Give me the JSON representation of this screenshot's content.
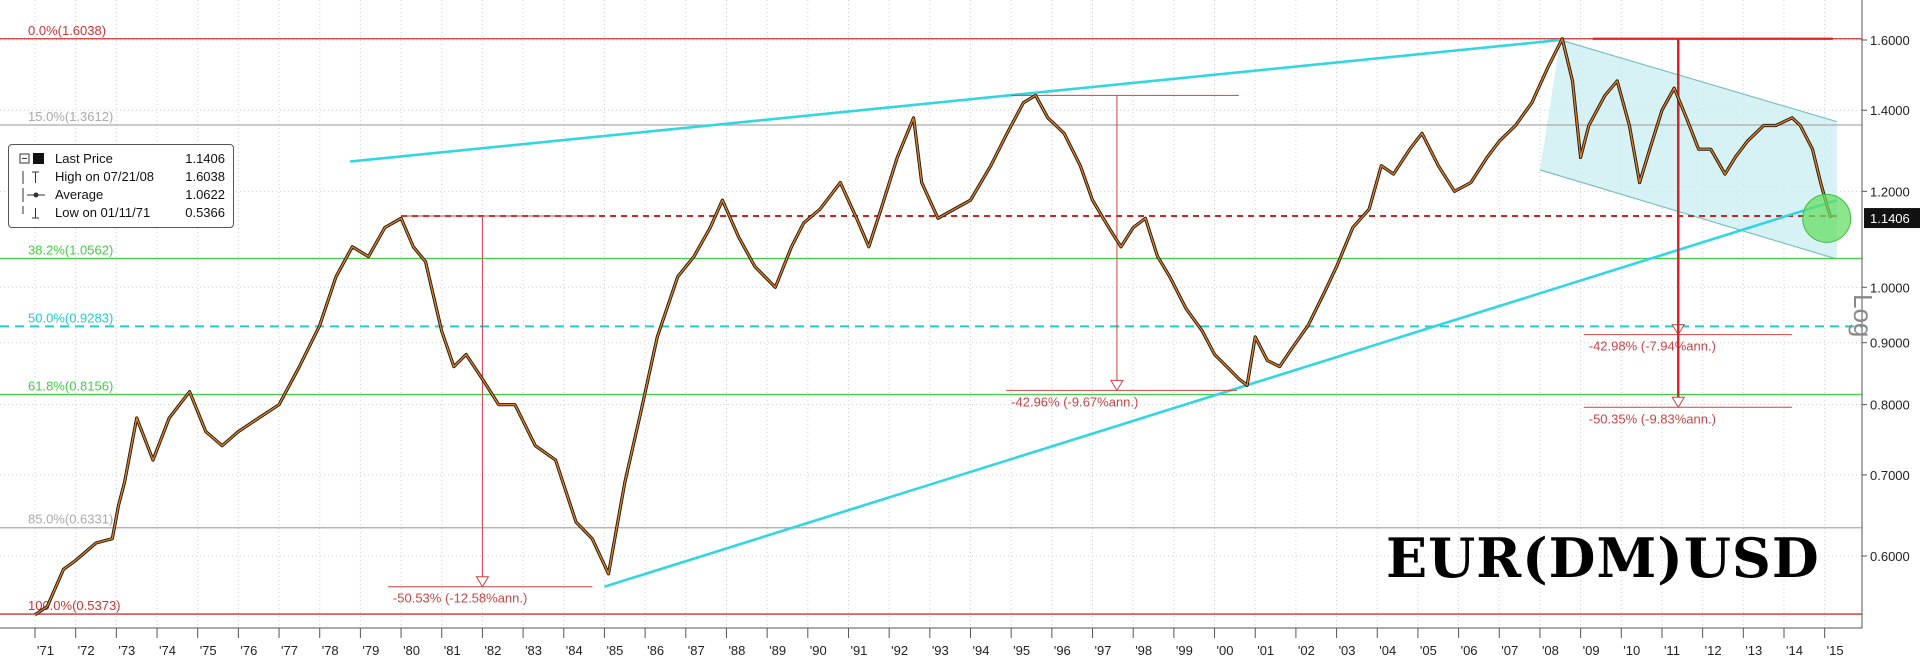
{
  "chart_data": {
    "type": "line",
    "title": "EUR(DM)USD",
    "scale": "log",
    "ylim": [
      0.53,
      1.65
    ],
    "xlim": [
      1971.0,
      2015.5
    ],
    "y_axis_side": "right",
    "y_axis_label": "Log",
    "y_ticks": [
      "1.6000",
      "1.4000",
      "1.2000",
      "1.0000",
      "0.9000",
      "0.8000",
      "0.7000",
      "0.6000"
    ],
    "y_tick_values": [
      1.6,
      1.4,
      1.2,
      1.0,
      0.9,
      0.8,
      0.7,
      0.6
    ],
    "x_ticks": [
      "'71",
      "'72",
      "'73",
      "'74",
      "'75",
      "'76",
      "'77",
      "'78",
      "'79",
      "'80",
      "'81",
      "'82",
      "'83",
      "'84",
      "'85",
      "'86",
      "'87",
      "'88",
      "'89",
      "'90",
      "'91",
      "'92",
      "'93",
      "'94",
      "'95",
      "'96",
      "'97",
      "'98",
      "'99",
      "'00",
      "'01",
      "'02",
      "'03",
      "'04",
      "'05",
      "'06",
      "'07",
      "'08",
      "'09",
      "'10",
      "'11",
      "'12",
      "'13",
      "'14",
      "'15"
    ],
    "last_price_label": "1.1406",
    "series": [
      {
        "name": "Last Price",
        "color": "#e07b1a",
        "x": [
          1971.0,
          1971.3,
          1971.7,
          1972.0,
          1972.5,
          1972.9,
          1973.05,
          1973.2,
          1973.5,
          1973.9,
          1974.3,
          1974.8,
          1975.2,
          1975.6,
          1976.0,
          1976.5,
          1977.0,
          1977.5,
          1978.0,
          1978.4,
          1978.8,
          1979.2,
          1979.6,
          1980.0,
          1980.3,
          1980.6,
          1981.0,
          1981.3,
          1981.6,
          1982.0,
          1982.4,
          1982.8,
          1983.3,
          1983.8,
          1984.3,
          1984.7,
          1985.1,
          1985.5,
          1985.9,
          1986.3,
          1986.8,
          1987.2,
          1987.6,
          1987.9,
          1988.3,
          1988.7,
          1989.2,
          1989.6,
          1989.9,
          1990.3,
          1990.8,
          1991.2,
          1991.5,
          1991.8,
          1992.2,
          1992.6,
          1992.8,
          1993.2,
          1993.6,
          1994.0,
          1994.5,
          1994.9,
          1995.3,
          1995.6,
          1995.9,
          1996.3,
          1996.7,
          1997.0,
          1997.4,
          1997.7,
          1998.0,
          1998.3,
          1998.6,
          1998.9,
          1999.3,
          1999.7,
          2000.0,
          2000.3,
          2000.6,
          2000.8,
          2001.0,
          2001.3,
          2001.6,
          2001.9,
          2002.3,
          2002.7,
          2003.0,
          2003.4,
          2003.8,
          2004.1,
          2004.4,
          2004.8,
          2005.1,
          2005.5,
          2005.9,
          2006.3,
          2006.7,
          2007.0,
          2007.4,
          2007.8,
          2008.2,
          2008.55,
          2008.8,
          2009.0,
          2009.2,
          2009.6,
          2009.9,
          2010.2,
          2010.45,
          2010.7,
          2011.0,
          2011.3,
          2011.6,
          2011.9,
          2012.2,
          2012.55,
          2012.8,
          2013.1,
          2013.5,
          2013.8,
          2014.2,
          2014.4,
          2014.7,
          2014.9,
          2015.05,
          2015.15
        ],
        "y": [
          0.5366,
          0.545,
          0.585,
          0.595,
          0.615,
          0.62,
          0.66,
          0.69,
          0.78,
          0.72,
          0.78,
          0.82,
          0.76,
          0.74,
          0.76,
          0.78,
          0.8,
          0.86,
          0.93,
          1.02,
          1.08,
          1.06,
          1.12,
          1.14,
          1.08,
          1.05,
          0.92,
          0.86,
          0.88,
          0.84,
          0.8,
          0.8,
          0.74,
          0.72,
          0.64,
          0.62,
          0.58,
          0.69,
          0.79,
          0.91,
          1.02,
          1.06,
          1.12,
          1.18,
          1.1,
          1.04,
          1.0,
          1.08,
          1.13,
          1.16,
          1.22,
          1.14,
          1.08,
          1.16,
          1.28,
          1.38,
          1.22,
          1.14,
          1.16,
          1.18,
          1.26,
          1.34,
          1.42,
          1.44,
          1.38,
          1.34,
          1.26,
          1.18,
          1.12,
          1.08,
          1.12,
          1.14,
          1.06,
          1.02,
          0.96,
          0.92,
          0.88,
          0.86,
          0.84,
          0.83,
          0.91,
          0.87,
          0.86,
          0.89,
          0.93,
          0.99,
          1.04,
          1.12,
          1.16,
          1.26,
          1.24,
          1.3,
          1.34,
          1.26,
          1.2,
          1.22,
          1.28,
          1.32,
          1.36,
          1.42,
          1.52,
          1.6038,
          1.48,
          1.28,
          1.36,
          1.44,
          1.48,
          1.36,
          1.22,
          1.3,
          1.4,
          1.46,
          1.38,
          1.3,
          1.3,
          1.24,
          1.28,
          1.32,
          1.36,
          1.36,
          1.38,
          1.36,
          1.3,
          1.22,
          1.17,
          1.1406
        ]
      }
    ],
    "legend": {
      "entries": [
        {
          "label": "Last Price",
          "value": "1.1406"
        },
        {
          "label": "High on 07/21/08",
          "value": "1.6038"
        },
        {
          "label": "Average",
          "value": "1.0622"
        },
        {
          "label": "Low on 01/11/71",
          "value": "0.5366"
        }
      ]
    },
    "fibonacci_levels": [
      {
        "label": "0.0%(1.6038)",
        "value": 1.6038,
        "color": "#cc3333"
      },
      {
        "label": "15.0%(1.3612)",
        "value": 1.3612,
        "color": "#aaaaaa"
      },
      {
        "label": "38.2%(1.0562)",
        "value": 1.0562,
        "color": "#44cc44"
      },
      {
        "label": "50.0%(0.9283)",
        "value": 0.9283,
        "color": "#22cccc"
      },
      {
        "label": "61.8%(0.8156)",
        "value": 0.8156,
        "color": "#44cc44"
      },
      {
        "label": "85.0%(0.6331)",
        "value": 0.6331,
        "color": "#aaaaaa"
      },
      {
        "label": "100.0%(0.5373)",
        "value": 0.5373,
        "color": "#cc3333"
      }
    ],
    "trend_lines": [
      {
        "x": [
          1978.75,
          2008.5
        ],
        "y": [
          1.27,
          1.6
        ]
      },
      {
        "x": [
          1985.0,
          2015.3
        ],
        "y": [
          0.566,
          1.18
        ]
      }
    ],
    "channel": {
      "upper": {
        "x": [
          2008.5,
          2015.3
        ],
        "y": [
          1.6,
          1.37
        ]
      },
      "lower": {
        "x": [
          2008.0,
          2015.3
        ],
        "y": [
          1.25,
          1.055
        ]
      },
      "fill": "#c9eef0"
    },
    "reference_line": {
      "value": 1.145,
      "x": [
        1980.0,
        2015.3
      ],
      "color": "#cc2222",
      "dashed": true
    },
    "annotations": [
      {
        "label": "-50.53% (-12.58%ann.)",
        "x": 1982.0,
        "y_top": 1.145,
        "y_bottom": 0.566,
        "label_x": 1979.8
      },
      {
        "label": "-42.96% (-9.67%ann.)",
        "x": 1997.6,
        "y_top": 1.44,
        "y_bottom": 0.822,
        "label_x": 1995.0
      },
      {
        "label": "-42.98% (-7.94%ann.)",
        "x": 2011.4,
        "y_top": 1.6038,
        "y_bottom": 0.914,
        "label_x": 2009.2
      },
      {
        "label": "-50.35% (-9.83%ann.)",
        "x": 2011.4,
        "y_top": 1.6038,
        "y_bottom": 0.796,
        "label_x": 2009.2
      }
    ],
    "highlight": {
      "x": 2015.05,
      "y": 1.14,
      "color": "#66dd66"
    }
  }
}
